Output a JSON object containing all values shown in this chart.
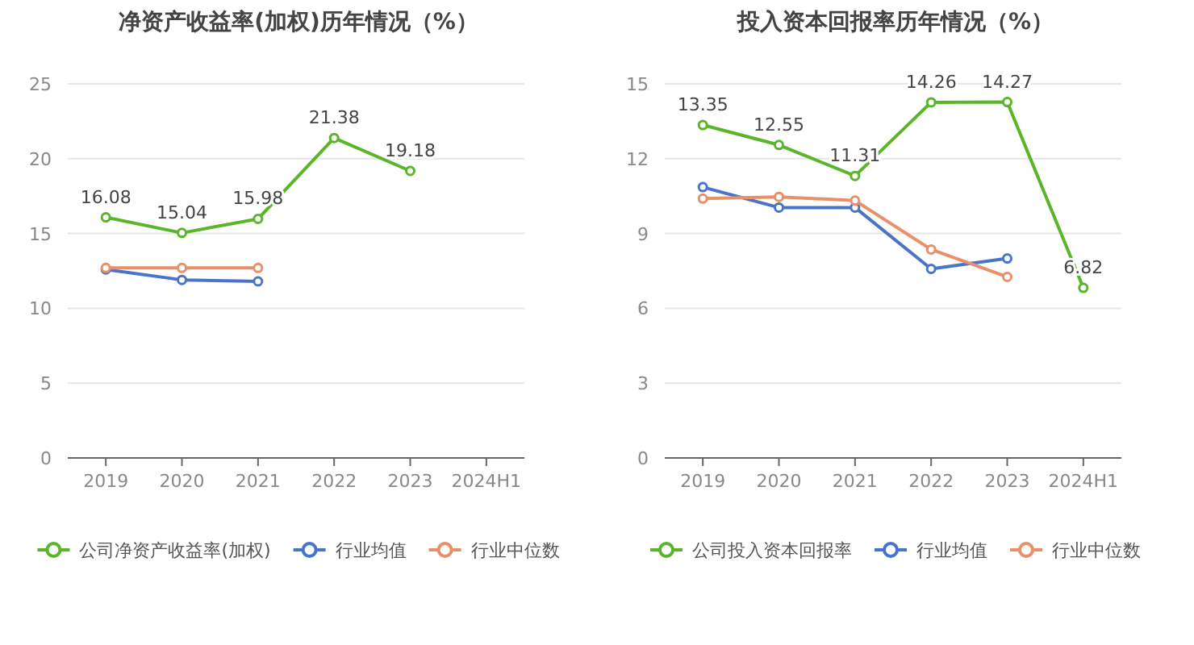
{
  "chart_data": [
    {
      "type": "line",
      "title": "净资产收益率(加权)历年情况（%）",
      "categories": [
        "2019",
        "2020",
        "2021",
        "2022",
        "2023",
        "2024H1"
      ],
      "ylim": [
        0,
        25
      ],
      "yticks": [
        0,
        5,
        10,
        15,
        20,
        25
      ],
      "grid": "y",
      "legend": "bottom",
      "marker": "circle",
      "line_style": "solid",
      "series": [
        {
          "name": "公司净资产收益率(加权)",
          "color": "#5ab52a",
          "values": [
            16.08,
            15.04,
            15.98,
            21.38,
            19.18,
            null
          ],
          "value_labels": [
            "16.08",
            "15.04",
            "15.98",
            "21.38",
            "19.18",
            null
          ]
        },
        {
          "name": "行业均值",
          "color": "#4a74c9",
          "values": [
            12.6,
            11.9,
            11.8,
            null,
            null,
            null
          ]
        },
        {
          "name": "行业中位数",
          "color": "#e8906a",
          "values": [
            12.7,
            12.7,
            12.7,
            null,
            null,
            null
          ]
        }
      ]
    },
    {
      "type": "line",
      "title": "投入资本回报率历年情况（%）",
      "categories": [
        "2019",
        "2020",
        "2021",
        "2022",
        "2023",
        "2024H1"
      ],
      "ylim": [
        0,
        15
      ],
      "yticks": [
        0,
        3,
        6,
        9,
        12,
        15
      ],
      "grid": "y",
      "legend": "bottom",
      "marker": "circle",
      "line_style": "solid",
      "series": [
        {
          "name": "公司投入资本回报率",
          "color": "#5ab52a",
          "values": [
            13.35,
            12.55,
            11.31,
            14.26,
            14.27,
            6.82
          ],
          "value_labels": [
            "13.35",
            "12.55",
            "11.31",
            "14.26",
            "14.27",
            "6.82"
          ]
        },
        {
          "name": "行业均值",
          "color": "#4a74c9",
          "values": [
            10.86,
            10.04,
            10.04,
            7.58,
            8.0,
            null
          ]
        },
        {
          "name": "行业中位数",
          "color": "#e8906a",
          "values": [
            10.4,
            10.47,
            10.32,
            8.36,
            7.26,
            null
          ]
        }
      ]
    }
  ]
}
